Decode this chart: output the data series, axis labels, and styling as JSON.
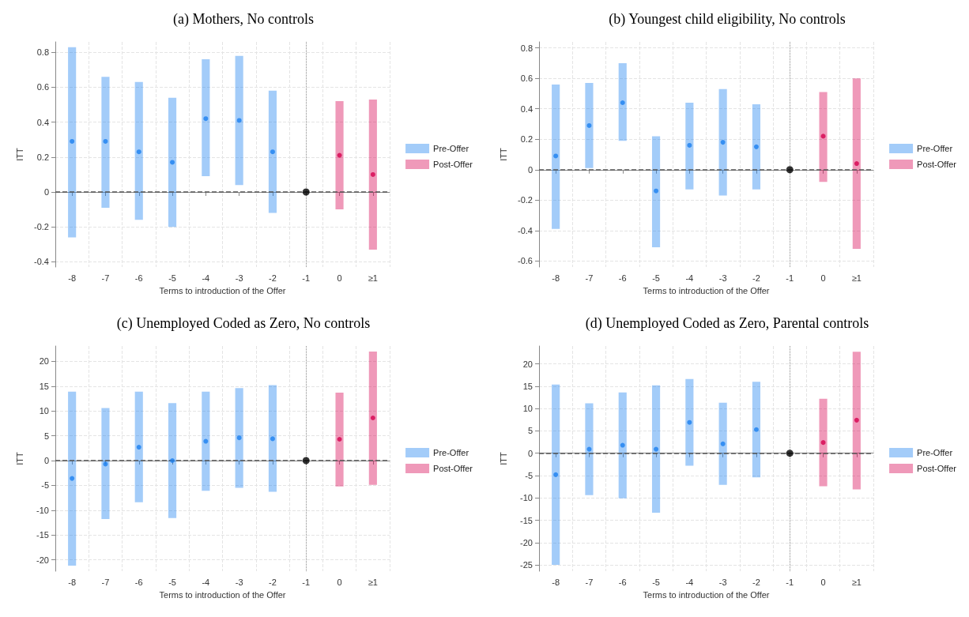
{
  "chart_data": [
    {
      "type": "scatter",
      "title": "(a) Mothers, No controls",
      "xlabel": "Terms to introduction of the Offer",
      "ylabel": "ITT",
      "categories": [
        "-8",
        "-7",
        "-6",
        "-5",
        "-4",
        "-3",
        "-2",
        "-1",
        "0",
        "≥1"
      ],
      "ylim": [
        -0.43,
        0.86
      ],
      "yticks": [
        -0.4,
        -0.2,
        0,
        0.2,
        0.4,
        0.6,
        0.8
      ],
      "grid": true,
      "legend": "right",
      "marker": "circle",
      "series": [
        {
          "name": "Pre-Offer",
          "color": "#1a80f0",
          "values": [
            0.29,
            0.29,
            0.23,
            0.17,
            0.42,
            0.41,
            0.23,
            null,
            null,
            null
          ],
          "errors": [
            [
              -0.26,
              0.83
            ],
            [
              -0.09,
              0.66
            ],
            [
              -0.16,
              0.63
            ],
            [
              -0.2,
              0.54
            ],
            [
              0.09,
              0.76
            ],
            [
              0.04,
              0.78
            ],
            [
              -0.12,
              0.58
            ],
            null,
            null,
            null
          ]
        },
        {
          "name": "Post-Offer",
          "color": "#d6004f",
          "values": [
            null,
            null,
            null,
            null,
            null,
            null,
            null,
            null,
            0.21,
            0.1
          ],
          "errors": [
            null,
            null,
            null,
            null,
            null,
            null,
            null,
            null,
            [
              -0.1,
              0.52
            ],
            [
              -0.33,
              0.53
            ]
          ]
        },
        {
          "color": "#000000",
          "values": [
            null,
            null,
            null,
            null,
            null,
            null,
            null,
            0,
            null,
            null
          ]
        }
      ],
      "ref_lines": [
        {
          "axis": "y",
          "value": 0,
          "color": "#555555",
          "line_style": "dashed"
        },
        {
          "axis": "x",
          "value": "-1",
          "color": "#888888",
          "line_style": "dotted"
        }
      ]
    },
    {
      "type": "scatter",
      "title": "(b) Youngest child eligibility, No controls",
      "xlabel": "Terms to introduction of the Offer",
      "ylabel": "ITT",
      "categories": [
        "-8",
        "-7",
        "-6",
        "-5",
        "-4",
        "-3",
        "-2",
        "-1",
        "0",
        "≥1"
      ],
      "ylim": [
        -0.64,
        0.84
      ],
      "yticks": [
        -0.6,
        -0.4,
        -0.2,
        0,
        0.2,
        0.4,
        0.6,
        0.8
      ],
      "grid": true,
      "legend": "right",
      "marker": "circle",
      "series": [
        {
          "name": "Pre-Offer",
          "color": "#1a80f0",
          "values": [
            0.09,
            0.29,
            0.44,
            -0.14,
            0.16,
            0.18,
            0.15,
            null,
            null,
            null
          ],
          "errors": [
            [
              -0.39,
              0.56
            ],
            [
              0.01,
              0.57
            ],
            [
              0.19,
              0.7
            ],
            [
              -0.51,
              0.22
            ],
            [
              -0.13,
              0.44
            ],
            [
              -0.17,
              0.53
            ],
            [
              -0.13,
              0.43
            ],
            null,
            null,
            null
          ]
        },
        {
          "name": "Post-Offer",
          "color": "#d6004f",
          "values": [
            null,
            null,
            null,
            null,
            null,
            null,
            null,
            null,
            0.22,
            0.04
          ],
          "errors": [
            null,
            null,
            null,
            null,
            null,
            null,
            null,
            null,
            [
              -0.08,
              0.51
            ],
            [
              -0.52,
              0.6
            ]
          ]
        },
        {
          "color": "#000000",
          "values": [
            null,
            null,
            null,
            null,
            null,
            null,
            null,
            0,
            null,
            null
          ]
        }
      ],
      "ref_lines": [
        {
          "axis": "y",
          "value": 0,
          "color": "#555555",
          "line_style": "dashed"
        },
        {
          "axis": "x",
          "value": "-1",
          "color": "#888888",
          "line_style": "dotted"
        }
      ]
    },
    {
      "type": "scatter",
      "title": "(c) Unemployed Coded as Zero, No controls",
      "xlabel": "Terms to introduction of the Offer",
      "ylabel": "ITT",
      "categories": [
        "-8",
        "-7",
        "-6",
        "-5",
        "-4",
        "-3",
        "-2",
        "-1",
        "0",
        "≥1"
      ],
      "ylim": [
        -22.3,
        23.1
      ],
      "yticks": [
        -20,
        -15,
        -10,
        -5,
        0,
        5,
        10,
        15,
        20
      ],
      "grid": true,
      "legend": "right",
      "marker": "circle",
      "series": [
        {
          "name": "Pre-Offer",
          "color": "#1a80f0",
          "values": [
            -3.6,
            -0.7,
            2.7,
            0,
            3.9,
            4.6,
            4.4,
            null,
            null,
            null
          ],
          "errors": [
            [
              -21.2,
              13.9
            ],
            [
              -11.8,
              10.6
            ],
            [
              -8.4,
              13.9
            ],
            [
              -11.6,
              11.6
            ],
            [
              -6.1,
              13.9
            ],
            [
              -5.5,
              14.6
            ],
            [
              -6.3,
              15.2
            ],
            null,
            null,
            null
          ]
        },
        {
          "name": "Post-Offer",
          "color": "#d6004f",
          "values": [
            null,
            null,
            null,
            null,
            null,
            null,
            null,
            null,
            4.3,
            8.6
          ],
          "errors": [
            null,
            null,
            null,
            null,
            null,
            null,
            null,
            null,
            [
              -5.2,
              13.7
            ],
            [
              -4.9,
              22
            ]
          ]
        },
        {
          "color": "#000000",
          "values": [
            null,
            null,
            null,
            null,
            null,
            null,
            null,
            0,
            null,
            null
          ]
        }
      ],
      "ref_lines": [
        {
          "axis": "y",
          "value": 0,
          "color": "#555555",
          "line_style": "dashed"
        },
        {
          "axis": "x",
          "value": "-1",
          "color": "#888888",
          "line_style": "dotted"
        }
      ]
    },
    {
      "type": "scatter",
      "title": "(d) Unemployed Coded as Zero, Parental controls",
      "xlabel": "Terms to introduction of the Offer",
      "ylabel": "ITT",
      "categories": [
        "-8",
        "-7",
        "-6",
        "-5",
        "-4",
        "-3",
        "-2",
        "-1",
        "0",
        "≥1"
      ],
      "ylim": [
        -26.4,
        24
      ],
      "yticks": [
        -25,
        -20,
        -15,
        -10,
        -5,
        0,
        5,
        10,
        15,
        20
      ],
      "grid": true,
      "legend": "right",
      "marker": "circle",
      "series": [
        {
          "name": "Pre-Offer",
          "color": "#1a80f0",
          "values": [
            -4.8,
            0.9,
            1.8,
            0.9,
            6.9,
            2.1,
            5.3,
            null,
            null,
            null
          ],
          "errors": [
            [
              -25,
              15.4
            ],
            [
              -9.4,
              11.2
            ],
            [
              -10.1,
              13.6
            ],
            [
              -13.3,
              15.2
            ],
            [
              -2.8,
              16.6
            ],
            [
              -7.1,
              11.3
            ],
            [
              -5.4,
              16
            ],
            null,
            null,
            null
          ]
        },
        {
          "name": "Post-Offer",
          "color": "#d6004f",
          "values": [
            null,
            null,
            null,
            null,
            null,
            null,
            null,
            null,
            2.4,
            7.4
          ],
          "errors": [
            null,
            null,
            null,
            null,
            null,
            null,
            null,
            null,
            [
              -7.4,
              12.2
            ],
            [
              -8.1,
              22.7
            ]
          ]
        },
        {
          "color": "#000000",
          "values": [
            null,
            null,
            null,
            null,
            null,
            null,
            null,
            0,
            null,
            null
          ]
        }
      ],
      "ref_lines": [
        {
          "axis": "y",
          "value": 0,
          "color": "#555555",
          "line_style": "dashed"
        },
        {
          "axis": "x",
          "value": "-1",
          "color": "#888888",
          "line_style": "dotted"
        }
      ]
    }
  ]
}
